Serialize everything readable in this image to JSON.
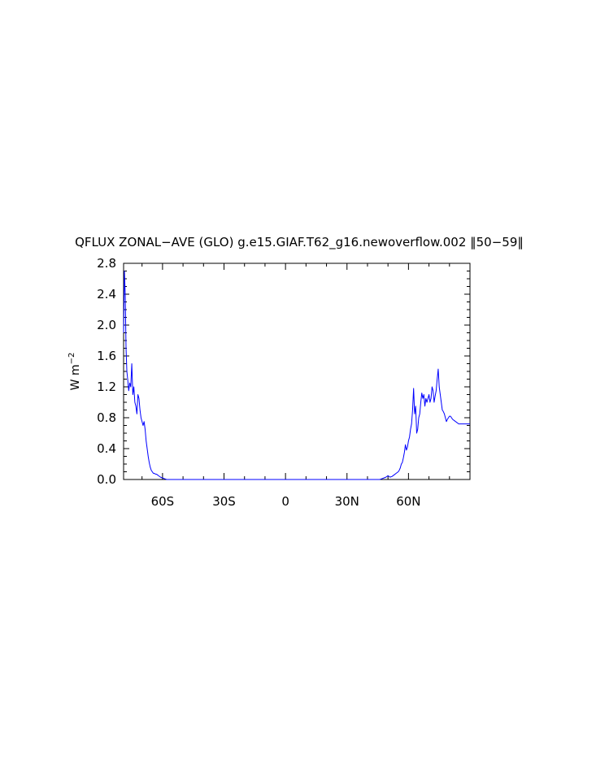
{
  "chart_data": {
    "type": "line",
    "title": "QFLUX ZONAL−AVE (GLO) g.e15.GIAF.T62_g16.newoverflow.002 ‖50−59‖",
    "ylabel": "W m",
    "ylabel_sup": "−2",
    "xlabel": "",
    "xlim": [
      -79,
      90
    ],
    "ylim": [
      0,
      2.8
    ],
    "x_ticks": [
      {
        "value": -60,
        "label": "60S"
      },
      {
        "value": -30,
        "label": "30S"
      },
      {
        "value": 0,
        "label": "0"
      },
      {
        "value": 30,
        "label": "30N"
      },
      {
        "value": 60,
        "label": "60N"
      }
    ],
    "y_ticks": [
      {
        "value": 0.0,
        "label": "0.0"
      },
      {
        "value": 0.4,
        "label": "0.4"
      },
      {
        "value": 0.8,
        "label": "0.8"
      },
      {
        "value": 1.2,
        "label": "1.2"
      },
      {
        "value": 1.6,
        "label": "1.6"
      },
      {
        "value": 2.0,
        "label": "2.0"
      },
      {
        "value": 2.4,
        "label": "2.4"
      },
      {
        "value": 2.8,
        "label": "2.8"
      }
    ],
    "grid": false,
    "series": [
      {
        "color": "#0000ff",
        "x": [
          -79,
          -78.6,
          -78.2,
          -77.8,
          -77.4,
          -77,
          -76.5,
          -76,
          -75.5,
          -75,
          -74.5,
          -74,
          -73.5,
          -73,
          -72.5,
          -72,
          -71.5,
          -71,
          -70.5,
          -70,
          -69.5,
          -69,
          -68.5,
          -68,
          -67.5,
          -67,
          -66.5,
          -66,
          -65.5,
          -65,
          -64.5,
          -64,
          -63.5,
          -63,
          -62.5,
          -62,
          -61,
          -60,
          -59,
          -58,
          -57,
          -56,
          -55,
          -54,
          -52,
          -50,
          -45,
          -40,
          -30,
          -20,
          -10,
          0,
          10,
          20,
          30,
          40,
          44,
          46,
          47,
          48,
          49,
          50,
          51,
          52,
          53,
          54,
          55,
          55.5,
          56,
          56.5,
          57,
          57.5,
          58,
          58.5,
          59,
          59.5,
          60,
          60.5,
          61,
          61.5,
          62,
          62.5,
          63,
          63.5,
          64,
          64.5,
          65,
          65.5,
          66,
          66.5,
          67,
          67.5,
          68,
          68.5,
          69,
          69.5,
          70,
          70.5,
          71,
          71.5,
          72,
          72.5,
          73,
          73.5,
          74,
          74.5,
          75,
          75.5,
          76,
          76.5,
          77,
          77.5,
          78,
          78.5,
          79,
          79.5,
          80,
          80.5,
          81,
          81.5,
          82,
          82.5,
          83,
          83.5,
          84,
          84.5,
          85,
          85.5,
          86,
          87,
          88,
          89,
          90
        ],
        "y": [
          1.9,
          2.7,
          2.4,
          1.7,
          1.4,
          1.3,
          1.15,
          1.25,
          1.2,
          1.5,
          1.1,
          1.2,
          1.0,
          0.95,
          0.85,
          1.1,
          1.05,
          0.9,
          0.8,
          0.75,
          0.7,
          0.75,
          0.65,
          0.5,
          0.4,
          0.3,
          0.22,
          0.16,
          0.12,
          0.1,
          0.08,
          0.08,
          0.07,
          0.07,
          0.06,
          0.05,
          0.03,
          0.02,
          0.01,
          0.0,
          0.0,
          0.0,
          0.0,
          0.0,
          0.0,
          0.0,
          0.0,
          0.0,
          0.0,
          0.0,
          0.0,
          0.0,
          0.0,
          0.0,
          0.0,
          0.0,
          0.0,
          0.0,
          0.01,
          0.02,
          0.03,
          0.05,
          0.03,
          0.04,
          0.06,
          0.08,
          0.1,
          0.12,
          0.15,
          0.2,
          0.22,
          0.28,
          0.35,
          0.45,
          0.38,
          0.42,
          0.5,
          0.55,
          0.65,
          0.72,
          0.9,
          1.18,
          0.85,
          0.95,
          0.6,
          0.65,
          0.8,
          0.85,
          1.0,
          1.12,
          1.05,
          1.1,
          0.95,
          1.05,
          1.0,
          1.05,
          1.1,
          1.0,
          1.05,
          1.2,
          1.15,
          1.0,
          1.08,
          1.15,
          1.3,
          1.43,
          1.2,
          1.1,
          1.0,
          0.9,
          0.88,
          0.85,
          0.8,
          0.75,
          0.78,
          0.8,
          0.82,
          0.82,
          0.8,
          0.78,
          0.77,
          0.76,
          0.75,
          0.74,
          0.73,
          0.72,
          0.72,
          0.72,
          0.72,
          0.72,
          0.72,
          0.72,
          0.72
        ]
      }
    ]
  }
}
